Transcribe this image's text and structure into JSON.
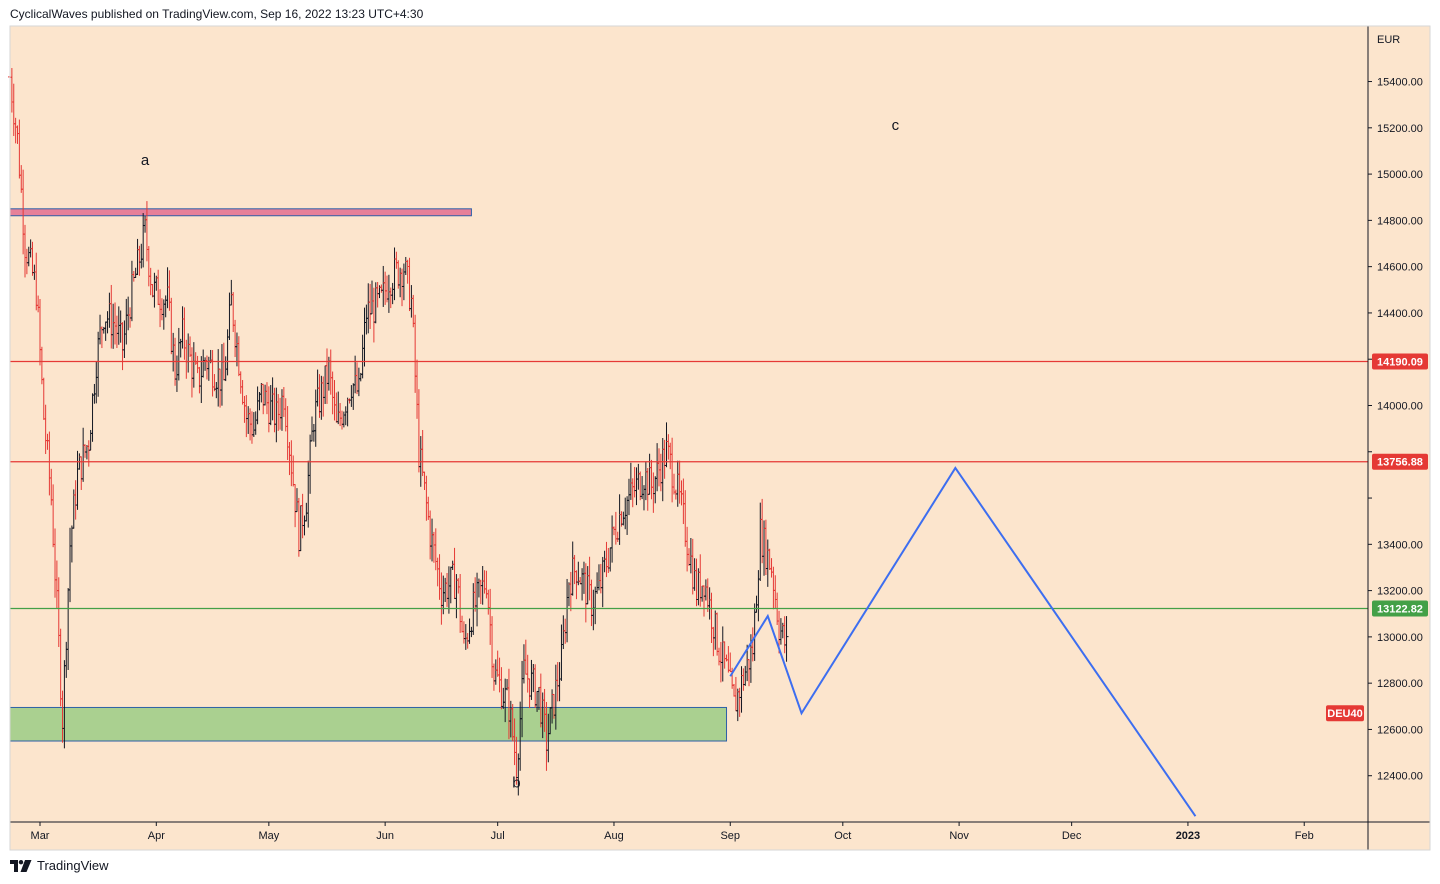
{
  "header": {
    "text": "CyclicalWaves published on TradingView.com, Sep 16, 2022 13:23 UTC+4:30"
  },
  "footer": {
    "brand": "TradingView"
  },
  "colors": {
    "background": "#fce5cd",
    "up": "#131722",
    "down": "#e53935",
    "resistance": "#e53935",
    "support": "#43a047",
    "projection": "#3d6ef0",
    "demand_zone": "#a5cf8c",
    "supply_zone": "#e57a96"
  },
  "chart_data": {
    "type": "ohlc",
    "symbol": "DEU40",
    "currency": "EUR",
    "y_range": [
      12200,
      15640
    ],
    "y_ticks": [
      12400,
      12600,
      12800,
      13000,
      13200,
      13400,
      13600,
      13800,
      14000,
      14200,
      14400,
      14600,
      14800,
      15000,
      15200,
      15400
    ],
    "y_tick_labels": [
      "12400.00",
      "12600.00",
      "12800.00",
      "13000.00",
      "13200.00",
      "13400.00",
      "",
      "",
      "14000.00",
      "",
      "14400.00",
      "14600.00",
      "14800.00",
      "15000.00",
      "15200.00",
      "15400.00"
    ],
    "x_range": [
      "2022-02-21",
      "2023-02-18"
    ],
    "x_ticks": [
      {
        "date": "2022-03-01",
        "label": "Mar"
      },
      {
        "date": "2022-04-01",
        "label": "Apr"
      },
      {
        "date": "2022-05-01",
        "label": "May"
      },
      {
        "date": "2022-06-01",
        "label": "Jun"
      },
      {
        "date": "2022-07-01",
        "label": "Jul"
      },
      {
        "date": "2022-08-01",
        "label": "Aug"
      },
      {
        "date": "2022-09-01",
        "label": "Sep"
      },
      {
        "date": "2022-10-01",
        "label": "Oct"
      },
      {
        "date": "2022-11-01",
        "label": "Nov"
      },
      {
        "date": "2022-12-01",
        "label": "Dec"
      },
      {
        "date": "2023-01-01",
        "label": "2023"
      },
      {
        "date": "2023-02-01",
        "label": "Feb"
      }
    ],
    "price_path": [
      [
        "2022-02-21",
        15420
      ],
      [
        "2022-02-23",
        15150
      ],
      [
        "2022-02-25",
        14700
      ],
      [
        "2022-02-28",
        14500
      ],
      [
        "2022-03-02",
        13950
      ],
      [
        "2022-03-04",
        13600
      ],
      [
        "2022-03-07",
        12650
      ],
      [
        "2022-03-09",
        13400
      ],
      [
        "2022-03-11",
        13700
      ],
      [
        "2022-03-14",
        13850
      ],
      [
        "2022-03-16",
        14200
      ],
      [
        "2022-03-18",
        14400
      ],
      [
        "2022-03-21",
        14350
      ],
      [
        "2022-03-23",
        14250
      ],
      [
        "2022-03-25",
        14450
      ],
      [
        "2022-03-29",
        14750
      ],
      [
        "2022-03-31",
        14500
      ],
      [
        "2022-04-04",
        14450
      ],
      [
        "2022-04-06",
        14150
      ],
      [
        "2022-04-08",
        14300
      ],
      [
        "2022-04-12",
        14100
      ],
      [
        "2022-04-14",
        14200
      ],
      [
        "2022-04-19",
        14100
      ],
      [
        "2022-04-21",
        14450
      ],
      [
        "2022-04-25",
        13950
      ],
      [
        "2022-04-27",
        13900
      ],
      [
        "2022-04-29",
        14050
      ],
      [
        "2022-05-03",
        13950
      ],
      [
        "2022-05-05",
        14050
      ],
      [
        "2022-05-09",
        13450
      ],
      [
        "2022-05-11",
        13600
      ],
      [
        "2022-05-13",
        13950
      ],
      [
        "2022-05-17",
        14150
      ],
      [
        "2022-05-19",
        13900
      ],
      [
        "2022-05-23",
        14100
      ],
      [
        "2022-05-25",
        14050
      ],
      [
        "2022-05-27",
        14400
      ],
      [
        "2022-05-31",
        14450
      ],
      [
        "2022-06-02",
        14550
      ],
      [
        "2022-06-06",
        14600
      ],
      [
        "2022-06-08",
        14450
      ],
      [
        "2022-06-10",
        13800
      ],
      [
        "2022-06-13",
        13450
      ],
      [
        "2022-06-16",
        13200
      ],
      [
        "2022-06-20",
        13250
      ],
      [
        "2022-06-22",
        12950
      ],
      [
        "2022-06-24",
        13100
      ],
      [
        "2022-06-28",
        13250
      ],
      [
        "2022-06-30",
        12850
      ],
      [
        "2022-07-04",
        12700
      ],
      [
        "2022-07-06",
        12450
      ],
      [
        "2022-07-08",
        12850
      ],
      [
        "2022-07-12",
        12750
      ],
      [
        "2022-07-14",
        12550
      ],
      [
        "2022-07-18",
        12900
      ],
      [
        "2022-07-20",
        13250
      ],
      [
        "2022-07-22",
        13300
      ],
      [
        "2022-07-26",
        13150
      ],
      [
        "2022-07-28",
        13200
      ],
      [
        "2022-08-01",
        13450
      ],
      [
        "2022-08-03",
        13550
      ],
      [
        "2022-08-05",
        13600
      ],
      [
        "2022-08-09",
        13700
      ],
      [
        "2022-08-11",
        13650
      ],
      [
        "2022-08-15",
        13800
      ],
      [
        "2022-08-17",
        13700
      ],
      [
        "2022-08-19",
        13550
      ],
      [
        "2022-08-23",
        13200
      ],
      [
        "2022-08-25",
        13250
      ],
      [
        "2022-08-29",
        12950
      ],
      [
        "2022-08-31",
        12850
      ],
      [
        "2022-09-02",
        12700
      ],
      [
        "2022-09-05",
        12850
      ],
      [
        "2022-09-07",
        12950
      ],
      [
        "2022-09-09",
        13450
      ],
      [
        "2022-09-12",
        13300
      ],
      [
        "2022-09-14",
        13050
      ],
      [
        "2022-09-16",
        12950
      ]
    ],
    "horizontal_levels": [
      {
        "price": 14190.09,
        "label": "14190.09",
        "color": "#e53935"
      },
      {
        "price": 13756.88,
        "label": "13756.88",
        "color": "#e53935"
      },
      {
        "price": 13122.82,
        "label": "13122.82",
        "color": "#43a047"
      }
    ],
    "zones": [
      {
        "name": "supply",
        "start": "2022-02-21",
        "end": "2022-06-24",
        "top": 14850,
        "bottom": 14820,
        "color": "#e57a96"
      },
      {
        "name": "demand",
        "start": "2022-02-21",
        "end": "2022-08-31",
        "top": 12695,
        "bottom": 12550,
        "color": "#a5cf8c"
      }
    ],
    "projection": [
      [
        "2022-09-01",
        12830
      ],
      [
        "2022-09-11",
        13090
      ],
      [
        "2022-09-20",
        12670
      ],
      [
        "2022-10-31",
        13730
      ],
      [
        "2023-01-03",
        12225
      ]
    ],
    "annotations": [
      {
        "text": "a",
        "date": "2022-03-29",
        "price": 15040
      },
      {
        "text": "b",
        "date": "2022-07-06",
        "price": 12350
      },
      {
        "text": "c",
        "date": "2022-10-15",
        "price": 15190
      }
    ],
    "symbol_label": "DEU40"
  }
}
